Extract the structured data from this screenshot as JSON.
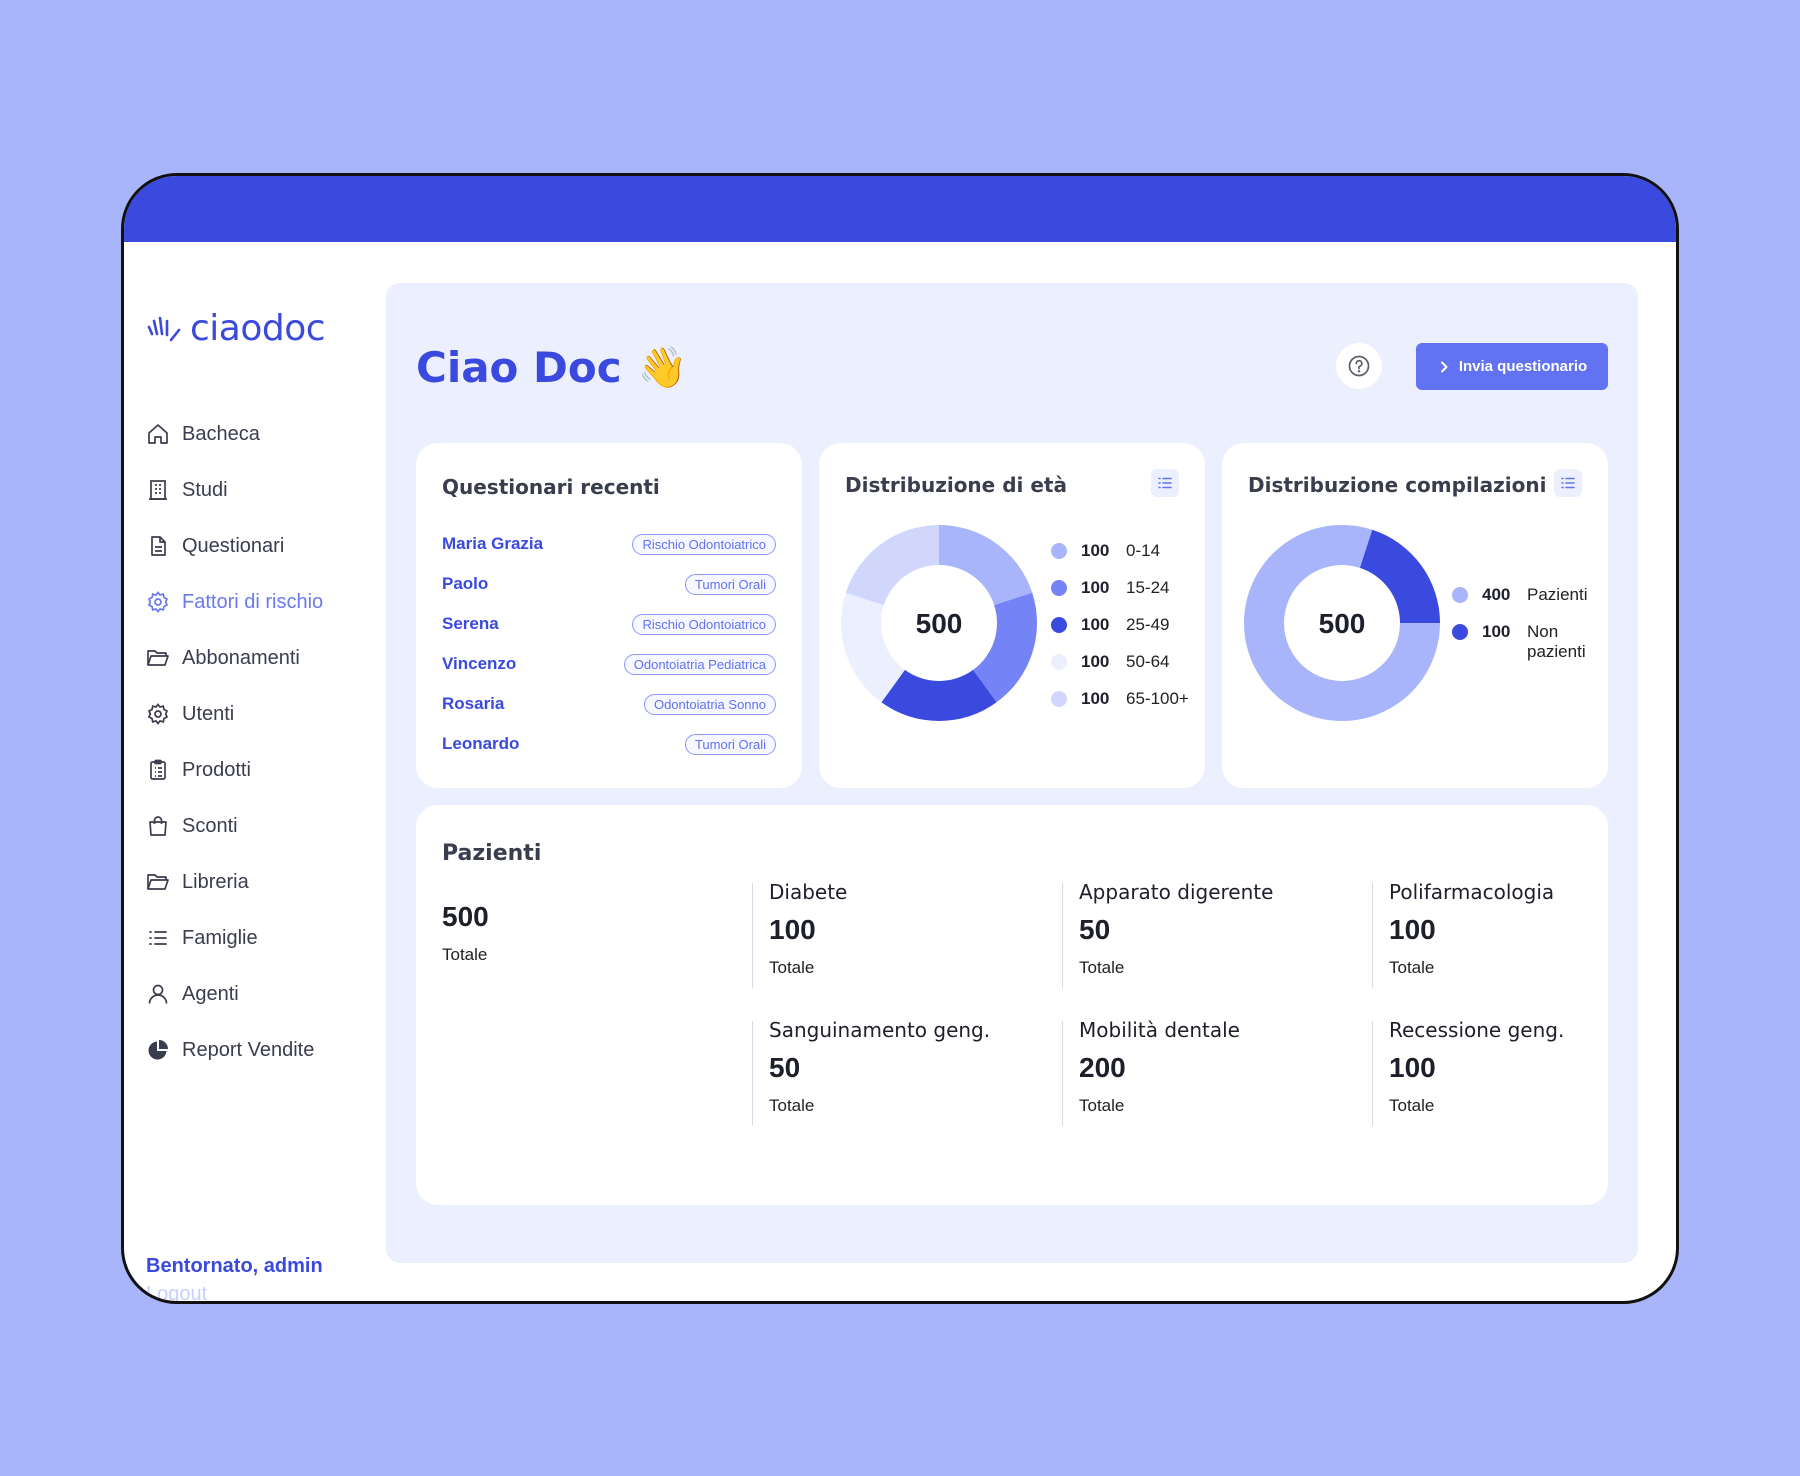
{
  "app": {
    "logo_text": "ciaodoc",
    "welcome": "Bentornato, admin",
    "logout": "Logout"
  },
  "sidebar": {
    "items": [
      {
        "label": "Bacheca",
        "icon": "home-icon",
        "active": false
      },
      {
        "label": "Studi",
        "icon": "building-icon",
        "active": false
      },
      {
        "label": "Questionari",
        "icon": "document-icon",
        "active": false
      },
      {
        "label": "Fattori di rischio",
        "icon": "gear-icon",
        "active": true
      },
      {
        "label": "Abbonamenti",
        "icon": "folder-icon",
        "active": false
      },
      {
        "label": "Utenti",
        "icon": "gear-icon",
        "active": false
      },
      {
        "label": "Prodotti",
        "icon": "clipboard-icon",
        "active": false
      },
      {
        "label": "Sconti",
        "icon": "bag-icon",
        "active": false
      },
      {
        "label": "Libreria",
        "icon": "folder-icon",
        "active": false
      },
      {
        "label": "Famiglie",
        "icon": "list-icon",
        "active": false
      },
      {
        "label": "Agenti",
        "icon": "user-icon",
        "active": false
      },
      {
        "label": "Report Vendite",
        "icon": "pie-chart-icon",
        "active": false
      }
    ],
    "active_color": "#6a79f2"
  },
  "header": {
    "title": "Ciao Doc",
    "emoji": "👋",
    "help_icon": "question-circle-icon",
    "send_button": "Invia questionario"
  },
  "recent": {
    "title": "Questionari recenti",
    "rows": [
      {
        "name": "Maria Grazia",
        "tag": "Rischio Odontoiatrico"
      },
      {
        "name": "Paolo",
        "tag": "Tumori Orali"
      },
      {
        "name": "Serena",
        "tag": "Rischio Odontoiatrico"
      },
      {
        "name": "Vincenzo",
        "tag": "Odontoiatria Pediatrica"
      },
      {
        "name": "Rosaria",
        "tag": "Odontoiatria Sonno"
      },
      {
        "name": "Leonardo",
        "tag": "Tumori Orali"
      }
    ]
  },
  "chart_data": [
    {
      "type": "pie",
      "title": "Distribuzione di età",
      "center_label": "500",
      "categories": [
        "0-14",
        "15-24",
        "25-49",
        "50-64",
        "65-100+"
      ],
      "values": [
        100,
        100,
        100,
        100,
        100
      ],
      "value_labels": [
        "100",
        "100",
        "100",
        "100",
        "100"
      ],
      "colors": [
        "#a8b5fb",
        "#7483f5",
        "#3a49de",
        "#eceffd",
        "#d0d6fc"
      ],
      "segment_order": [
        "0-14",
        "15-24",
        "25-49",
        "50-64",
        "65-100+"
      ],
      "legend_position": "right"
    },
    {
      "type": "pie",
      "title": "Distribuzione compilazioni",
      "center_label": "500",
      "categories": [
        "Pazienti",
        "Non pazienti"
      ],
      "values": [
        400,
        100
      ],
      "value_labels": [
        "400",
        "100"
      ],
      "colors": [
        "#a8b5fb",
        "#3a49de"
      ],
      "legend_position": "right"
    }
  ],
  "pazienti": {
    "title": "Pazienti",
    "total": {
      "value": "500",
      "label": "Totale"
    },
    "stats": [
      {
        "label": "Diabete",
        "value": "100",
        "sub": "Totale"
      },
      {
        "label": "Apparato digerente",
        "value": "50",
        "sub": "Totale"
      },
      {
        "label": "Polifarmacologia",
        "value": "100",
        "sub": "Totale"
      },
      {
        "label": "Sanguinamento geng.",
        "value": "50",
        "sub": "Totale"
      },
      {
        "label": "Mobilità dentale",
        "value": "200",
        "sub": "Totale"
      },
      {
        "label": "Recessione geng.",
        "value": "100",
        "sub": "Totale"
      }
    ]
  }
}
